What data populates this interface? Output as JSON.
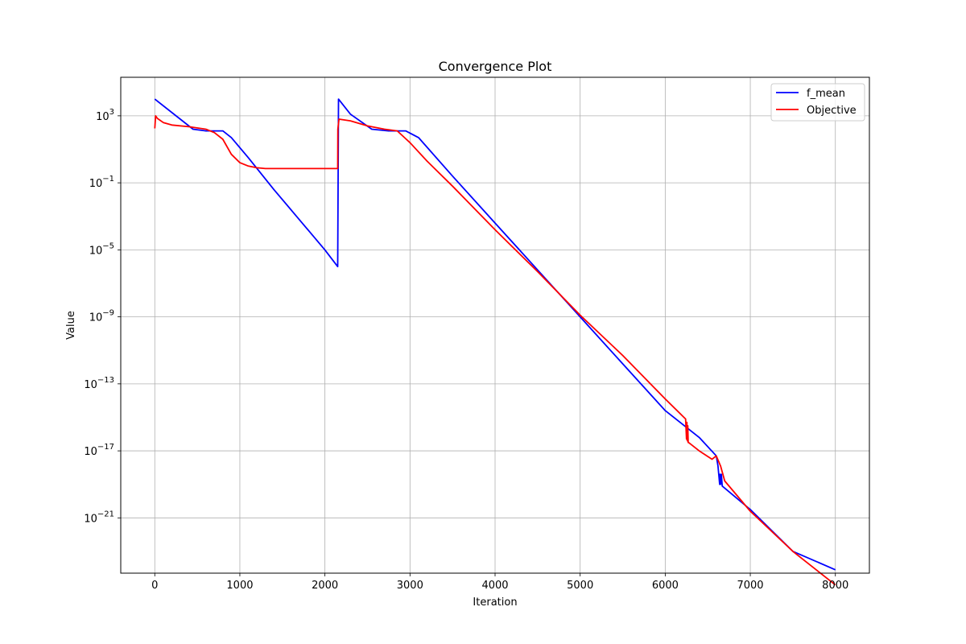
{
  "chart_data": {
    "type": "line",
    "title": "Convergence Plot",
    "xlabel": "Iteration",
    "ylabel": "Value",
    "xlim": [
      -400,
      8400
    ],
    "ylim_log10": [
      -24.3,
      5.3
    ],
    "yscale": "log",
    "grid": true,
    "legend_position": "top-right",
    "x_ticks": [
      0,
      1000,
      2000,
      3000,
      4000,
      5000,
      6000,
      7000,
      8000
    ],
    "x_tick_labels": [
      "0",
      "1000",
      "2000",
      "3000",
      "4000",
      "5000",
      "6000",
      "7000",
      "8000"
    ],
    "y_ticks_log10": [
      3,
      -1,
      -5,
      -9,
      -13,
      -17,
      -21
    ],
    "y_tick_labels": [
      {
        "base": "10",
        "exp": "3"
      },
      {
        "base": "10",
        "exp": "−1"
      },
      {
        "base": "10",
        "exp": "−5"
      },
      {
        "base": "10",
        "exp": "−9"
      },
      {
        "base": "10",
        "exp": "−13"
      },
      {
        "base": "10",
        "exp": "−17"
      },
      {
        "base": "10",
        "exp": "−21"
      }
    ],
    "series": [
      {
        "name": "f_mean",
        "color": "#0000ff",
        "x": [
          0,
          450,
          600,
          800,
          900,
          1100,
          1400,
          1700,
          2000,
          2150,
          2160,
          2300,
          2550,
          2750,
          2950,
          3100,
          3500,
          4000,
          4500,
          5000,
          5500,
          6000,
          6400,
          6600,
          6620,
          6640,
          6645,
          6650,
          6660,
          6670,
          7000,
          7500,
          8000
        ],
        "y_log10": [
          4.0,
          2.2,
          2.1,
          2.1,
          1.7,
          0.5,
          -1.4,
          -3.2,
          -5.0,
          -6.0,
          4.0,
          3.1,
          2.2,
          2.1,
          2.1,
          1.7,
          -0.6,
          -3.4,
          -6.2,
          -9.0,
          -11.8,
          -14.6,
          -16.2,
          -17.3,
          -17.9,
          -19.0,
          -18.4,
          -19.0,
          -18.4,
          -19.1,
          -20.5,
          -23.0,
          -24.1
        ]
      },
      {
        "name": "Objective",
        "color": "#ff0000",
        "x": [
          0,
          10,
          30,
          100,
          200,
          400,
          600,
          700,
          800,
          900,
          1000,
          1100,
          1200,
          1300,
          1400,
          2150,
          2152,
          2165,
          2300,
          2500,
          2700,
          2850,
          3000,
          3200,
          3500,
          4000,
          4500,
          5000,
          5500,
          6000,
          6240,
          6250,
          6255,
          6260,
          6265,
          6270,
          6275,
          6400,
          6550,
          6600,
          6650,
          6700,
          7000,
          7500,
          8000
        ],
        "y_log10": [
          2.25,
          3.0,
          2.85,
          2.6,
          2.45,
          2.35,
          2.2,
          2.0,
          1.6,
          0.7,
          0.2,
          0.0,
          -0.1,
          -0.15,
          -0.15,
          -0.15,
          2.2,
          2.8,
          2.7,
          2.4,
          2.2,
          2.1,
          1.4,
          0.3,
          -1.2,
          -3.8,
          -6.3,
          -8.9,
          -11.3,
          -13.9,
          -15.1,
          -16.3,
          -15.3,
          -16.4,
          -15.5,
          -16.5,
          -16.5,
          -17.0,
          -17.5,
          -17.3,
          -17.9,
          -18.8,
          -20.6,
          -23.0,
          -25.0
        ]
      }
    ]
  }
}
